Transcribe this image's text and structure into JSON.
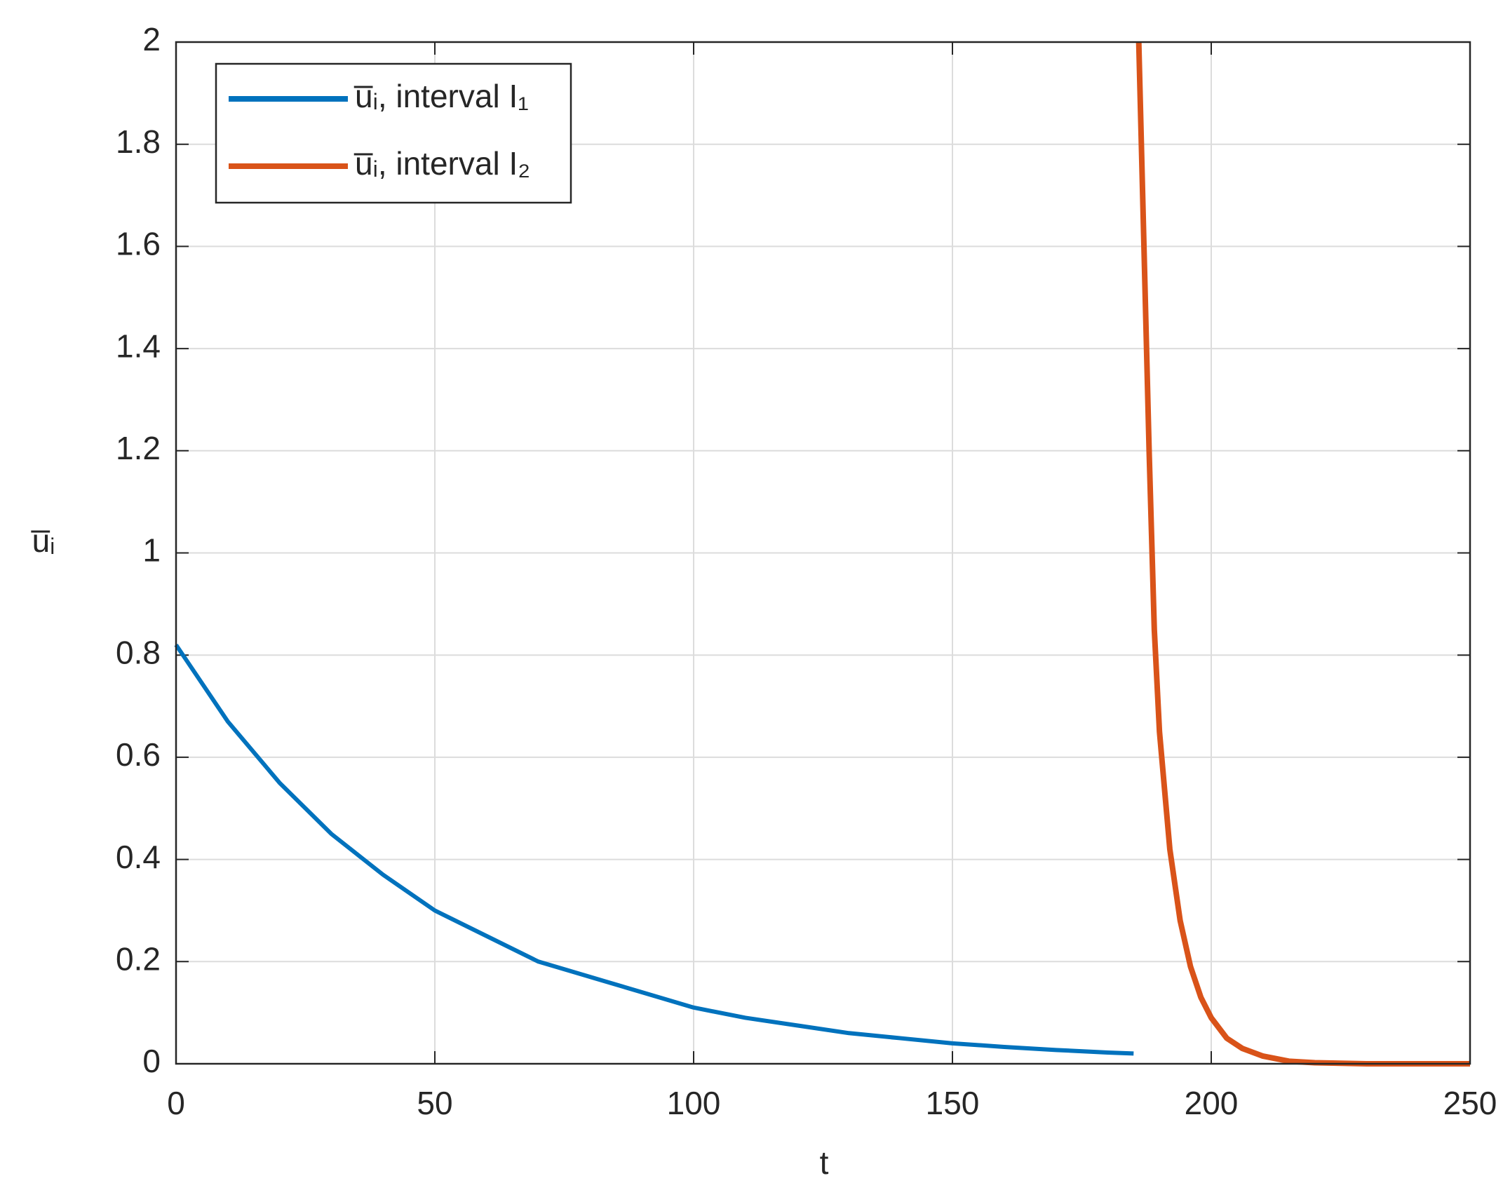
{
  "chart_data": {
    "type": "line",
    "xlabel": "t",
    "ylabel": "u̅ᵢ",
    "xlim": [
      0,
      250
    ],
    "ylim": [
      0,
      2
    ],
    "xticks": [
      0,
      50,
      100,
      150,
      200,
      250
    ],
    "yticks": [
      0,
      0.2,
      0.4,
      0.6,
      0.8,
      1,
      1.2,
      1.4,
      1.6,
      1.8,
      2
    ],
    "grid": true,
    "legend": "upper left",
    "series": [
      {
        "name": "u̅ᵢ, interval I₁",
        "color": "#0072bd",
        "x": [
          0,
          10,
          20,
          30,
          40,
          50,
          60,
          70,
          80,
          90,
          100,
          110,
          120,
          130,
          140,
          150,
          160,
          170,
          180,
          185
        ],
        "values": [
          0.82,
          0.67,
          0.55,
          0.45,
          0.37,
          0.3,
          0.25,
          0.2,
          0.17,
          0.14,
          0.11,
          0.09,
          0.075,
          0.06,
          0.05,
          0.04,
          0.033,
          0.027,
          0.022,
          0.02
        ]
      },
      {
        "name": "u̅ᵢ, interval I₂",
        "color": "#d95319",
        "x": [
          186,
          187,
          188,
          189,
          190,
          192,
          194,
          196,
          198,
          200,
          203,
          206,
          210,
          215,
          220,
          230,
          250
        ],
        "values": [
          2,
          1.6,
          1.2,
          0.85,
          0.65,
          0.42,
          0.28,
          0.19,
          0.13,
          0.09,
          0.05,
          0.03,
          0.015,
          0.005,
          0.002,
          0,
          0
        ]
      }
    ]
  }
}
